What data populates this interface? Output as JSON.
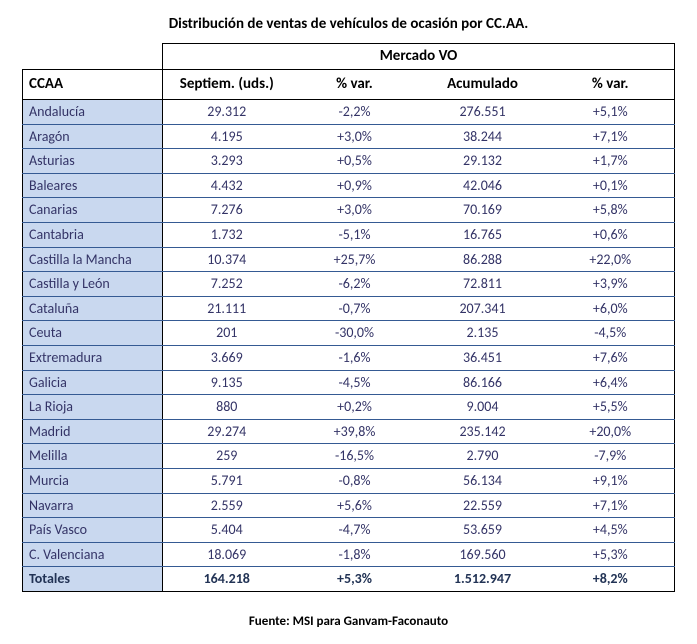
{
  "title": "Distribución de ventas de vehículos de ocasión por CC.AA.",
  "footer": "Fuente: MSI para Ganvam-Faconauto",
  "header": {
    "ccaa": "CCAA",
    "group": "Mercado VO",
    "col1": "Septiem. (uds.)",
    "col2": "% var.",
    "col3": "Acumulado",
    "col4": "% var."
  },
  "rows": [
    {
      "r": "Andalucía",
      "a": "29.312",
      "b": "-2,2%",
      "c": "276.551",
      "d": "+5,1%"
    },
    {
      "r": "Aragón",
      "a": "4.195",
      "b": "+3,0%",
      "c": "38.244",
      "d": "+7,1%"
    },
    {
      "r": "Asturias",
      "a": "3.293",
      "b": "+0,5%",
      "c": "29.132",
      "d": "+1,7%"
    },
    {
      "r": "Baleares",
      "a": "4.432",
      "b": "+0,9%",
      "c": "42.046",
      "d": "+0,1%"
    },
    {
      "r": "Canarias",
      "a": "7.276",
      "b": "+3,0%",
      "c": "70.169",
      "d": "+5,8%"
    },
    {
      "r": "Cantabria",
      "a": "1.732",
      "b": "-5,1%",
      "c": "16.765",
      "d": "+0,6%"
    },
    {
      "r": "Castilla la Mancha",
      "a": "10.374",
      "b": "+25,7%",
      "c": "86.288",
      "d": "+22,0%"
    },
    {
      "r": "Castilla y León",
      "a": "7.252",
      "b": "-6,2%",
      "c": "72.811",
      "d": "+3,9%"
    },
    {
      "r": "Cataluña",
      "a": "21.111",
      "b": "-0,7%",
      "c": "207.341",
      "d": "+6,0%"
    },
    {
      "r": "Ceuta",
      "a": "201",
      "b": "-30,0%",
      "c": "2.135",
      "d": "-4,5%"
    },
    {
      "r": "Extremadura",
      "a": "3.669",
      "b": "-1,6%",
      "c": "36.451",
      "d": "+7,6%"
    },
    {
      "r": "Galicia",
      "a": "9.135",
      "b": "-4,5%",
      "c": "86.166",
      "d": "+6,4%"
    },
    {
      "r": "La Rioja",
      "a": "880",
      "b": "+0,2%",
      "c": "9.004",
      "d": "+5,5%"
    },
    {
      "r": "Madrid",
      "a": "29.274",
      "b": "+39,8%",
      "c": "235.142",
      "d": "+20,0%"
    },
    {
      "r": "Melilla",
      "a": "259",
      "b": "-16,5%",
      "c": "2.790",
      "d": "-7,9%"
    },
    {
      "r": "Murcia",
      "a": "5.791",
      "b": "-0,8%",
      "c": "56.134",
      "d": "+9,1%"
    },
    {
      "r": "Navarra",
      "a": "2.559",
      "b": "+5,6%",
      "c": "22.559",
      "d": "+7,1%"
    },
    {
      "r": "País Vasco",
      "a": "5.404",
      "b": "-4,7%",
      "c": "53.659",
      "d": "+4,5%"
    },
    {
      "r": "C. Valenciana",
      "a": "18.069",
      "b": "-1,8%",
      "c": "169.560",
      "d": "+5,3%"
    }
  ],
  "totals": {
    "r": "Totales",
    "a": "164.218",
    "b": "+5,3%",
    "c": "1.512.947",
    "d": "+8,2%"
  },
  "colors": {
    "region_bg": "#c9d8ef",
    "text_data": "#333366",
    "row_border": "#355a93"
  }
}
